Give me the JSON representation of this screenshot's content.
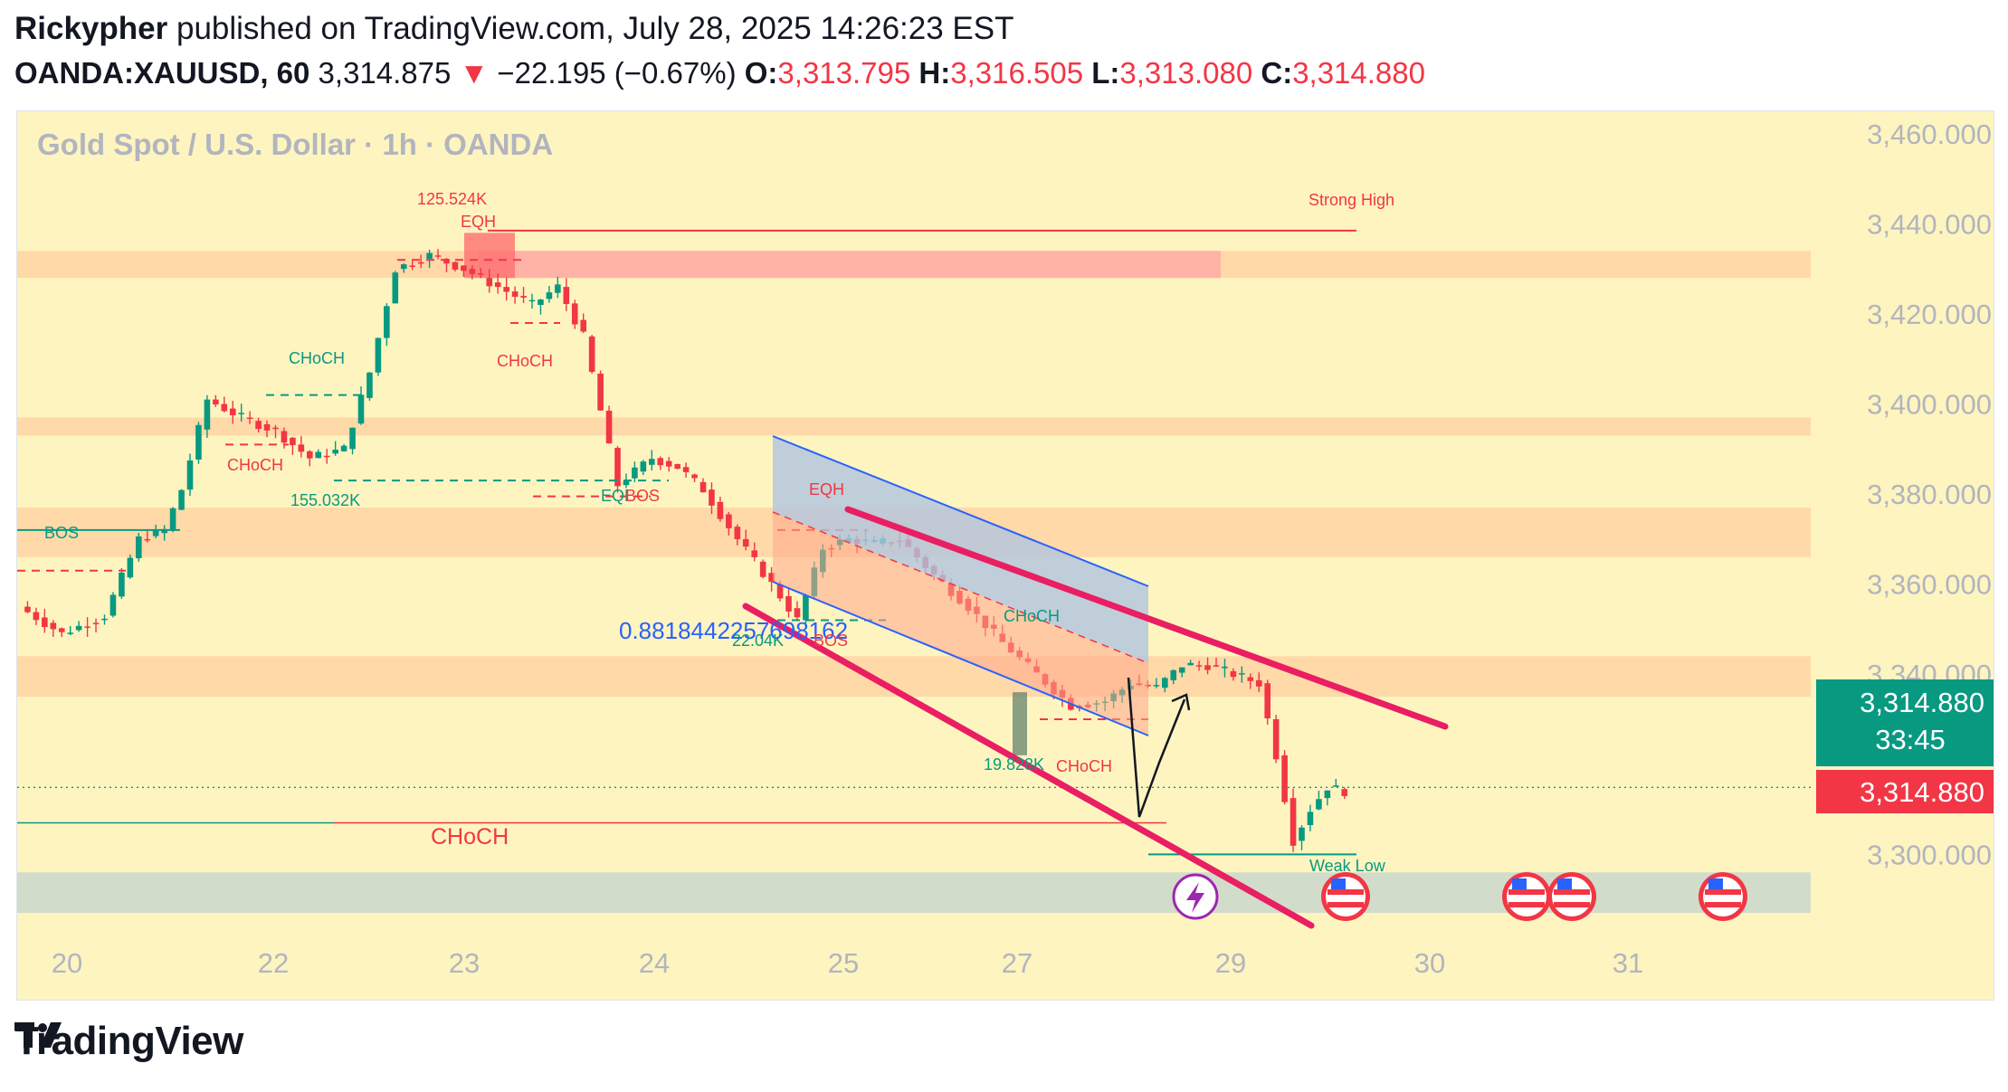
{
  "header": {
    "author": "Rickypher",
    "published_text": "published on TradingView.com, July 28, 2025 14:26:23 EST",
    "symbol": "OANDA:XAUUSD, 60",
    "last": "3,314.875",
    "change_arrow": "▼",
    "change": "−22.195 (−0.67%)",
    "o_label": "O:",
    "o_value": "3,313.795",
    "h_label": "H:",
    "h_value": "3,316.505",
    "l_label": "L:",
    "l_value": "3,313.080",
    "c_label": "C:",
    "c_value": "3,314.880"
  },
  "chart_data": {
    "type": "candlestick",
    "title": "Gold Spot / U.S. Dollar · 1h · OANDA",
    "ylim": [
      3285,
      3465
    ],
    "y_ticks": [
      "3,460.000",
      "3,440.000",
      "3,420.000",
      "3,400.000",
      "3,380.000",
      "3,360.000",
      "3,340.000",
      "3,300.000"
    ],
    "x_ticks": [
      "20",
      "22",
      "23",
      "24",
      "25",
      "27",
      "29",
      "30",
      "31"
    ],
    "price_label": "3,314.880",
    "countdown": "33:45",
    "price_label_2": "3,314.880",
    "close_path": [
      [
        0,
        3355
      ],
      [
        5,
        3349
      ],
      [
        10,
        3353
      ],
      [
        14,
        3370
      ],
      [
        17,
        3372
      ],
      [
        19,
        3381
      ],
      [
        22,
        3401
      ],
      [
        26,
        3397
      ],
      [
        30,
        3394
      ],
      [
        34,
        3388
      ],
      [
        38,
        3390
      ],
      [
        41,
        3407
      ],
      [
        44,
        3430
      ],
      [
        48,
        3433
      ],
      [
        52,
        3430
      ],
      [
        56,
        3426
      ],
      [
        60,
        3422
      ],
      [
        63,
        3426
      ],
      [
        66,
        3415
      ],
      [
        70,
        3382
      ],
      [
        74,
        3388
      ],
      [
        77,
        3386
      ],
      [
        80,
        3381
      ],
      [
        84,
        3370
      ],
      [
        88,
        3360
      ],
      [
        91,
        3352
      ],
      [
        94,
        3368
      ],
      [
        97,
        3370
      ],
      [
        100,
        3369
      ],
      [
        103,
        3370
      ],
      [
        107,
        3362
      ],
      [
        111,
        3355
      ],
      [
        115,
        3347
      ],
      [
        119,
        3340
      ],
      [
        123,
        3333
      ],
      [
        127,
        3334
      ],
      [
        130,
        3338
      ],
      [
        133,
        3337
      ],
      [
        136,
        3342
      ],
      [
        139,
        3342
      ],
      [
        142,
        3340
      ],
      [
        145,
        3338
      ],
      [
        147,
        3322
      ],
      [
        149,
        3303
      ],
      [
        151,
        3310
      ],
      [
        153,
        3315
      ],
      [
        155,
        3314
      ]
    ],
    "annotations": [
      {
        "text": "BOS",
        "price": 3365.5,
        "color": "#089981"
      },
      {
        "text": "CHoCH",
        "price": 3398.5,
        "color": "#089981"
      },
      {
        "text": "CHoCH",
        "price": 3378.5,
        "color": "#f23645"
      },
      {
        "text": "155.032K",
        "price": 3378,
        "color": "#089981"
      },
      {
        "text": "125.524K",
        "price": 3444.5,
        "color": "#f23645"
      },
      {
        "text": "EQH",
        "price": 3437.5,
        "color": "#f23645"
      },
      {
        "text": "CHoCH",
        "price": 3413,
        "color": "#f23645"
      },
      {
        "text": "EQL",
        "price": 3379.5,
        "color": "#089981"
      },
      {
        "text": "BOS",
        "price": 3379.5,
        "color": "#f23645"
      },
      {
        "text": "EQH",
        "price": 3380.5,
        "color": "#f23645"
      },
      {
        "text": "0.8818442257698162",
        "price": 3346.5,
        "color": "#2962ff"
      },
      {
        "text": "22.04K",
        "price": 3343,
        "color": "#089981"
      },
      {
        "text": "BOS",
        "price": 3343,
        "color": "#f23645"
      },
      {
        "text": "CHoCH",
        "price": 3346,
        "color": "#089981"
      },
      {
        "text": "19.828K",
        "price": 3318.5,
        "color": "#089981"
      },
      {
        "text": "CHoCH",
        "price": 3318.5,
        "color": "#f23645"
      },
      {
        "text": "Strong High",
        "price": 3445.5,
        "color": "#f23645"
      },
      {
        "text": "CHoCH",
        "price": 3300,
        "color": "#f23645"
      },
      {
        "text": "Weak Low",
        "price": 3295.5,
        "color": "#089981"
      }
    ],
    "zones": [
      {
        "from": 3428,
        "to": 3434,
        "color": "#ffd9a8"
      },
      {
        "from": 3393,
        "to": 3397,
        "color": "#ffd9a8"
      },
      {
        "from": 3366,
        "to": 3377,
        "color": "#ffd9a8"
      },
      {
        "from": 3335,
        "to": 3344,
        "color": "#ffd9a8"
      },
      {
        "from": 3287,
        "to": 3296,
        "color": "#d2dccb"
      }
    ],
    "colors": {
      "up": "#089981",
      "down": "#f23645",
      "background": "#fef4c0",
      "channel": "#e91e63"
    }
  },
  "icons": [
    "flash-icon",
    "us-flag-icon",
    "us-flag-icon",
    "us-flag-icon",
    "us-flag-icon"
  ],
  "brand": {
    "name": "TradingView"
  }
}
